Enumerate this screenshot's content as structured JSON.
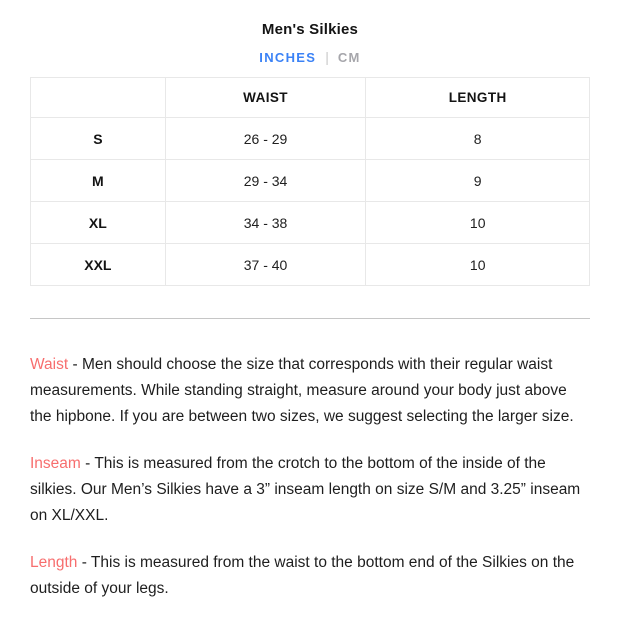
{
  "page": {
    "title": "Men's Silkies"
  },
  "unit_tabs": {
    "inches_label": "INCHES",
    "separator": "|",
    "cm_label": "CM",
    "active": "INCHES"
  },
  "size_table": {
    "columns": [
      "",
      "WAIST",
      "LENGTH"
    ],
    "rows": [
      {
        "size": "S",
        "waist": "26 - 29",
        "length": "8"
      },
      {
        "size": "M",
        "waist": "29 - 34",
        "length": "9"
      },
      {
        "size": "XL",
        "waist": "34 - 38",
        "length": "10"
      },
      {
        "size": "XXL",
        "waist": "37 - 40",
        "length": "10"
      }
    ]
  },
  "descriptions": [
    {
      "term": "Waist",
      "text": "- Men should choose the size that corresponds with their regular waist measurements. While standing straight, measure around your body just above the hipbone. If you are between two sizes, we suggest selecting the larger size."
    },
    {
      "term": "Inseam",
      "text": "- This is measured from the crotch to the bottom of the inside of the silkies. Our Men’s Silkies have a 3” inseam length on size S/M and 3.25” inseam on XL/XXL."
    },
    {
      "term": "Length",
      "text": "- This is measured from the waist to the bottom end of the Silkies on the outside of your legs."
    }
  ],
  "colors": {
    "accent_blue": "#3b82f6",
    "inactive_gray": "#a6a6ab",
    "term_red": "#f76e6e"
  }
}
